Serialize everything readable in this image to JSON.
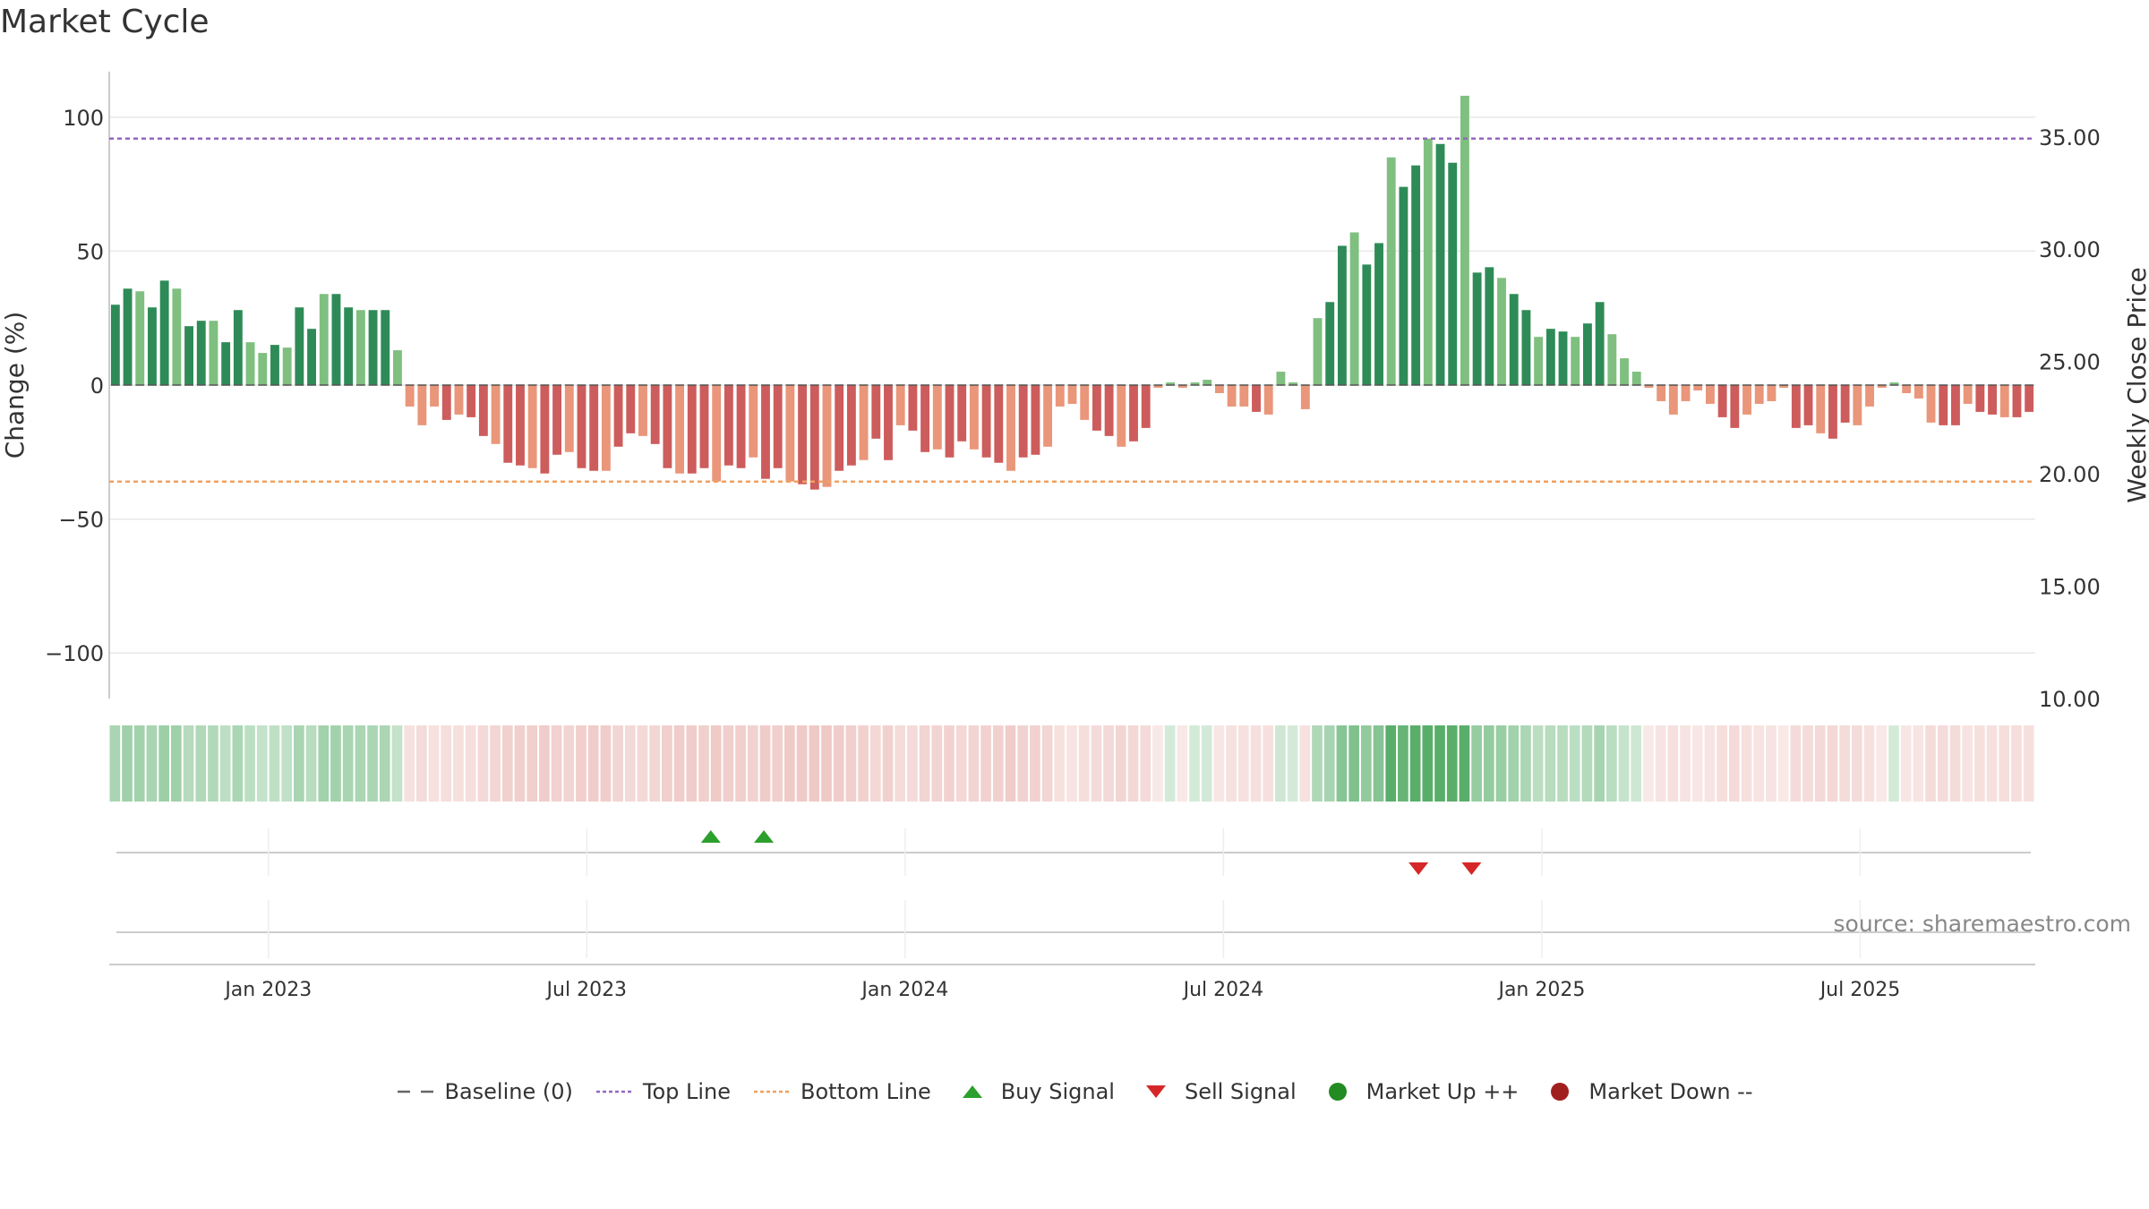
{
  "title": "Market Cycle",
  "source": "source: sharemaestro.com",
  "chart_data": {
    "type": "bar",
    "title": "Market Cycle",
    "ylabel": "Change (%)",
    "y2label": "Weekly Close Price",
    "ylim": [
      -117,
      117
    ],
    "y2lim": [
      10.0,
      37.9
    ],
    "yticks": [
      100,
      50,
      0,
      -50,
      -100
    ],
    "y2ticks": [
      "35.00",
      "30.00",
      "25.00",
      "20.00",
      "15.00",
      "10.00"
    ],
    "xticks": [
      "Jan 2023",
      "Jul 2023",
      "Jan 2024",
      "Jul 2024",
      "Jan 2025",
      "Jul 2025"
    ],
    "top_line": 92,
    "bottom_line": -36,
    "baseline": 0,
    "values": [
      30,
      36,
      35,
      29,
      39,
      36,
      22,
      24,
      24,
      16,
      28,
      16,
      12,
      15,
      14,
      29,
      21,
      34,
      34,
      29,
      28,
      28,
      28,
      13,
      -8,
      -15,
      -8,
      -13,
      -11,
      -12,
      -19,
      -22,
      -29,
      -30,
      -31,
      -33,
      -26,
      -25,
      -31,
      -32,
      -32,
      -23,
      -18,
      -19,
      -22,
      -31,
      -33,
      -33,
      -31,
      -36,
      -30,
      -31,
      -27,
      -35,
      -31,
      -36,
      -37,
      -39,
      -38,
      -32,
      -30,
      -28,
      -20,
      -28,
      -15,
      -17,
      -25,
      -24,
      -27,
      -21,
      -24,
      -27,
      -29,
      -32,
      -27,
      -26,
      -23,
      -8,
      -7,
      -13,
      -17,
      -19,
      -23,
      -21,
      -16,
      -1,
      1,
      -1,
      1,
      2,
      -3,
      -8,
      -8,
      -10,
      -11,
      5,
      1,
      -9,
      25,
      31,
      52,
      57,
      45,
      53,
      85,
      74,
      82,
      92,
      90,
      83,
      108,
      42,
      44,
      40,
      34,
      28,
      18,
      21,
      20,
      18,
      23,
      31,
      19,
      10,
      5,
      -1,
      -6,
      -11,
      -6,
      -2,
      -7,
      -12,
      -16,
      -11,
      -7,
      -6,
      -1,
      -16,
      -15,
      -18,
      -20,
      -14,
      -15,
      -8,
      -1,
      1,
      -3,
      -5,
      -14,
      -15,
      -15,
      -7,
      -10,
      -11,
      -12,
      -12,
      -10
    ],
    "buy_signals": [
      "Sep 2023",
      "Oct 2023"
    ],
    "sell_signals": [
      "Oct 2024",
      "Nov 2024"
    ],
    "legend": [
      {
        "label": "Baseline (0)",
        "symbol": "dash",
        "color": "#666666"
      },
      {
        "label": "Top Line",
        "symbol": "dotted",
        "color": "#9467bd"
      },
      {
        "label": "Bottom Line",
        "symbol": "dotted",
        "color": "#f0a060"
      },
      {
        "label": "Buy Signal",
        "symbol": "triangle-up",
        "color": "#2ca02c"
      },
      {
        "label": "Sell Signal",
        "symbol": "triangle-down",
        "color": "#d62728"
      },
      {
        "label": "Market Up ++",
        "symbol": "circle",
        "color": "#228b22"
      },
      {
        "label": "Market Down --",
        "symbol": "circle",
        "color": "#a02020"
      }
    ],
    "colors": {
      "up_strong": "#2e8b57",
      "up_light": "#7fbf7f",
      "down_strong": "#cd5c5c",
      "down_light": "#e9967a",
      "top_line": "#9467bd",
      "bottom_line": "#f0a060"
    }
  }
}
